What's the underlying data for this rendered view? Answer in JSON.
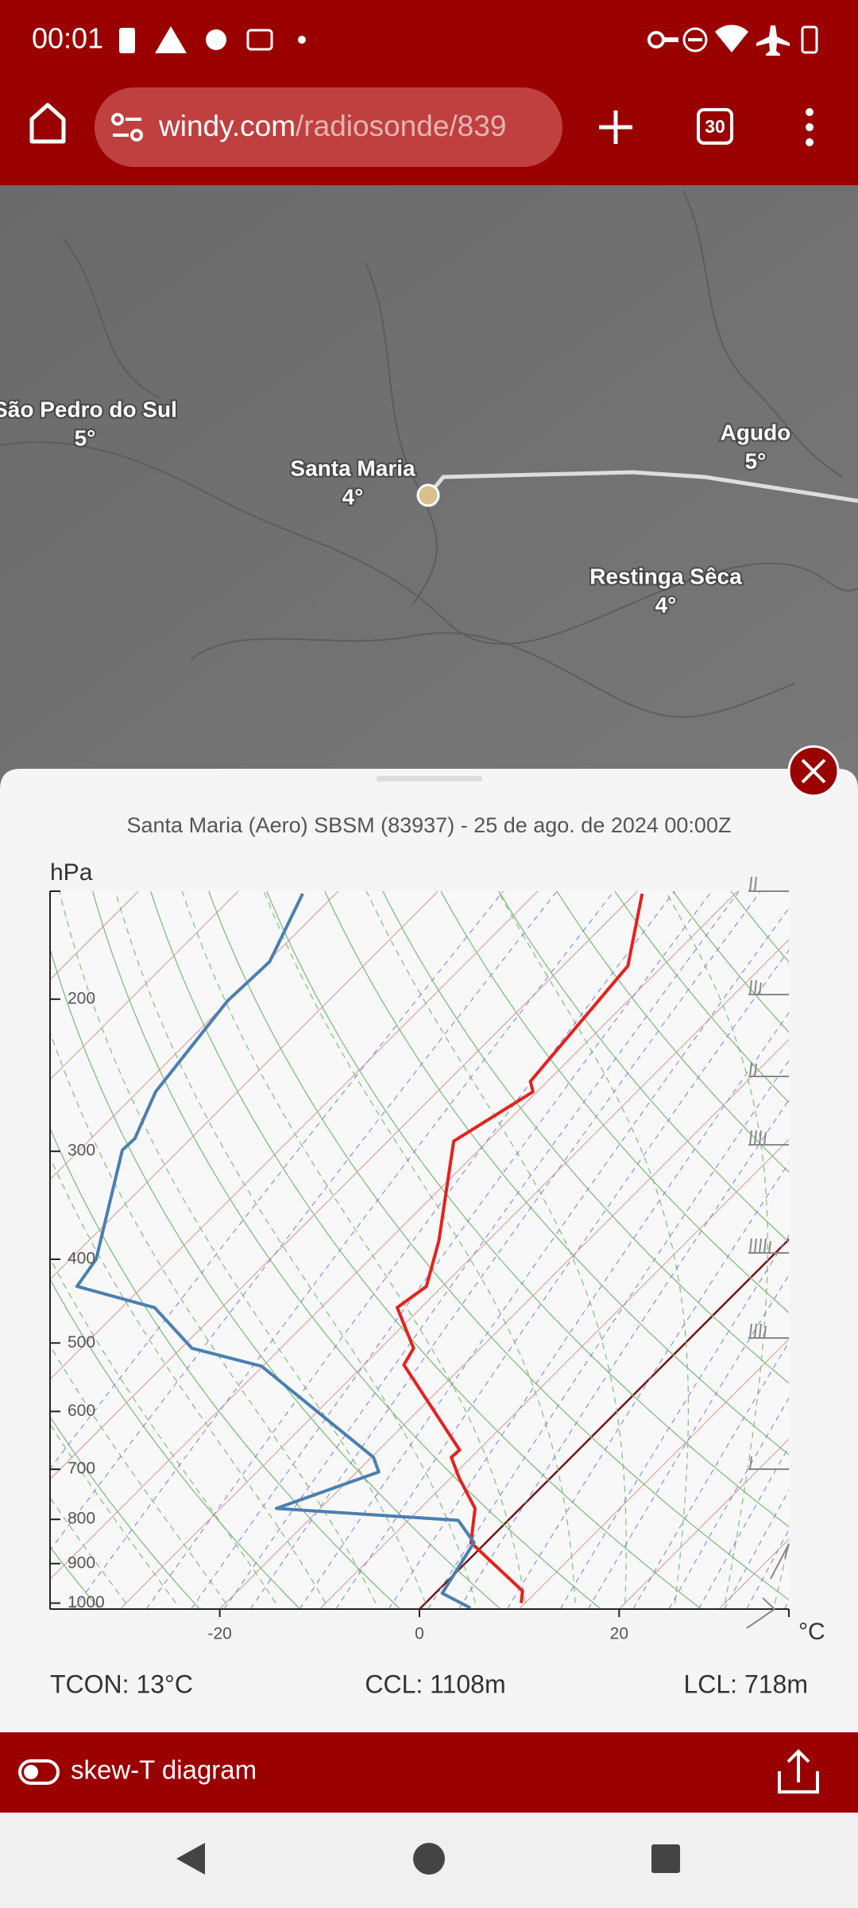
{
  "status_bar": {
    "time": "00:01"
  },
  "browser": {
    "url_domain": "windy.com",
    "url_path": "/radiosonde/839",
    "tab_count": "30"
  },
  "map": {
    "labels": [
      {
        "name": "São Pedro do Sul",
        "temp": "5°"
      },
      {
        "name": "Santa Maria",
        "temp": "4°"
      },
      {
        "name": "Agudo",
        "temp": "5°"
      },
      {
        "name": "Restinga Sêca",
        "temp": "4°"
      }
    ]
  },
  "panel": {
    "title": "Santa Maria (Aero) SBSM (83937) - 25 de ago. de 2024 00:00Z",
    "chart_data": {
      "type": "skew-t",
      "ylabel": "hPa",
      "xlabel": "°C",
      "log_y": true,
      "xlim": [
        -37,
        37
      ],
      "ylim": [
        1016,
        150
      ],
      "xticks": [
        -20,
        0,
        20
      ],
      "yticks": [
        200,
        300,
        400,
        500,
        600,
        700,
        800,
        900,
        1000
      ],
      "series": [
        {
          "color": "#e8201c",
          "x": [
            9.6,
            8.5,
            -1.5,
            -4.5,
            -9.1,
            -12.0,
            -11.9,
            -26.0,
            -26.7,
            -32.4,
            -31.6,
            -34.9,
            -43.4,
            -40.4,
            -41.7,
            -43.5,
            -49.3
          ],
          "values": [
            1000,
            968,
            851,
            777,
            717,
            678,
            665,
            530,
            507,
            455,
            430,
            381,
            292,
            256,
            249,
            183,
            151
          ]
        },
        {
          "color": "#4a7fb0",
          "x": [
            5.0,
            0.7,
            -1.2,
            -5.0,
            -24.4,
            -17.8,
            -19.8,
            -40.1,
            -48.9,
            -56.7,
            -66.6,
            -67.4,
            -75.7,
            -75.6,
            -78.2,
            -80.1,
            -79.8,
            -83.3
          ],
          "values": [
            1013,
            974,
            851,
            802,
            777,
            705,
            678,
            532,
            507,
            455,
            430,
            400,
            299,
            290,
            256,
            201,
            181,
            151
          ]
        }
      ]
    },
    "stats": [
      "TCON: 13°C",
      "CCL: 1108m",
      "LCL: 718m"
    ]
  },
  "toolbar": {
    "toggle_label": "skew-T diagram"
  }
}
